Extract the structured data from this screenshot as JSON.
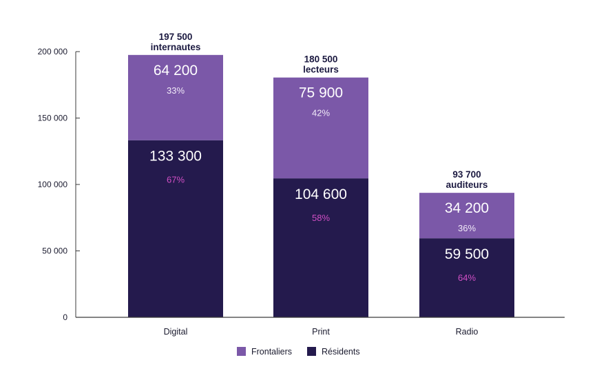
{
  "chart_data": {
    "type": "bar",
    "stacked": true,
    "categories": [
      "Digital",
      "Print",
      "Radio"
    ],
    "series": [
      {
        "name": "Résidents",
        "values": [
          133300,
          104600,
          59500
        ],
        "value_labels": [
          "133 300",
          "104 600",
          "59 500"
        ],
        "percent_labels": [
          "67%",
          "58%",
          "64%"
        ],
        "color": "#241a4d",
        "percent_color": "#d04fc4"
      },
      {
        "name": "Frontaliers",
        "values": [
          64200,
          75900,
          34200
        ],
        "value_labels": [
          "64 200",
          "75 900",
          "34 200"
        ],
        "percent_labels": [
          "33%",
          "42%",
          "36%"
        ],
        "color": "#7b58a8",
        "percent_color": "#f1eaf8"
      }
    ],
    "totals": [
      {
        "value": "197 500",
        "unit": "internautes"
      },
      {
        "value": "180 500",
        "unit": "lecteurs"
      },
      {
        "value": "93 700",
        "unit": "auditeurs"
      }
    ],
    "ylim": [
      0,
      200000
    ],
    "yticks": [
      0,
      50000,
      100000,
      150000,
      200000
    ],
    "ytick_labels": [
      "0",
      "50 000",
      "100 000",
      "150 000",
      "200 000"
    ],
    "legend": {
      "position": "bottom-center",
      "items": [
        {
          "label": "Frontaliers",
          "color": "#7b58a8"
        },
        {
          "label": "Résidents",
          "color": "#241a4d"
        }
      ]
    },
    "grid": false,
    "title": "",
    "xlabel": "",
    "ylabel": ""
  }
}
